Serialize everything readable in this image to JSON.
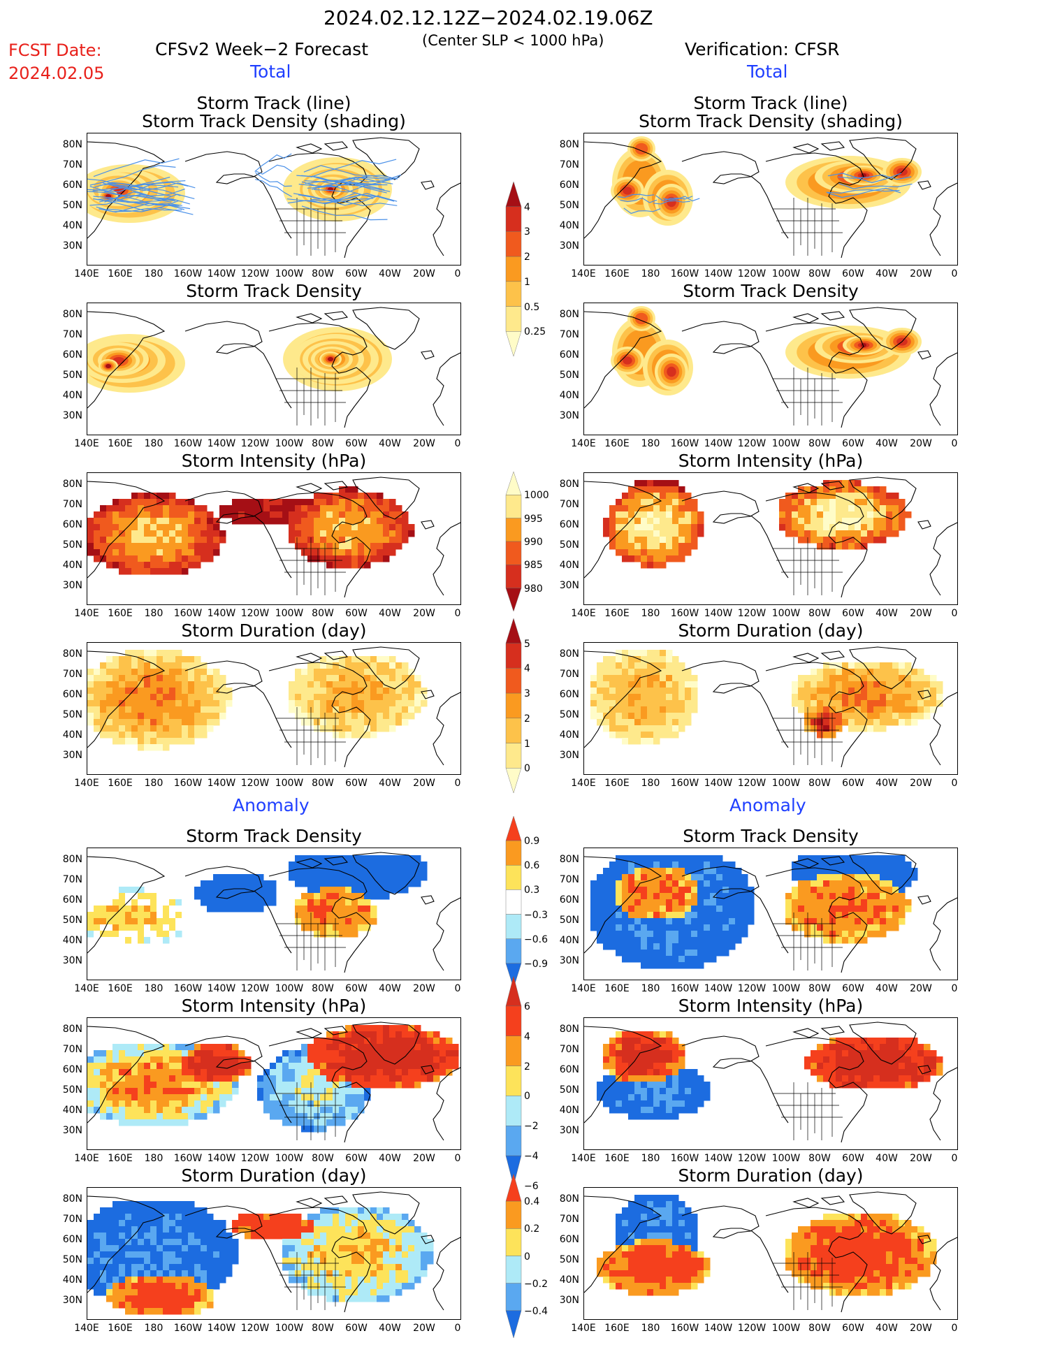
{
  "header": {
    "period": "2024.02.12.12Z−2024.02.19.06Z",
    "criterion": "(Center SLP < 1000 hPa)",
    "fcst_label": "FCST Date:",
    "fcst_date": "2024.02.05",
    "left_title": "CFSv2 Week−2 Forecast",
    "right_title": "Verification: CFSR"
  },
  "sections": {
    "total": "Total",
    "anomaly": "Anomaly"
  },
  "panel_titles": {
    "track_line": "Storm Track (line)",
    "track_shading": "Storm Track Density (shading)",
    "density": "Storm Track Density",
    "intensity": "Storm Intensity (hPa)",
    "duration": "Storm Duration (day)"
  },
  "axes": {
    "lat_labels": [
      "80N",
      "70N",
      "60N",
      "50N",
      "40N",
      "30N"
    ],
    "lon_labels": [
      "140E",
      "160E",
      "180",
      "160W",
      "140W",
      "120W",
      "100W",
      "80W",
      "60W",
      "40W",
      "20W",
      "0"
    ]
  },
  "colorbars": {
    "density_total": {
      "labels": [
        "4",
        "3",
        "2",
        "1",
        "0.5",
        "0.25"
      ],
      "colors": [
        "#a50f15",
        "#d62f1e",
        "#f05a1e",
        "#fa9a20",
        "#fdc24a",
        "#fee98c",
        "#fffcc8"
      ]
    },
    "intensity_total": {
      "labels": [
        "1000",
        "995",
        "990",
        "985",
        "980"
      ],
      "colors": [
        "#fffcc8",
        "#fee98c",
        "#fa9a20",
        "#f05a1e",
        "#d62f1e",
        "#a50f15"
      ]
    },
    "duration_total": {
      "labels": [
        "5",
        "4",
        "3",
        "2",
        "1",
        "0"
      ],
      "colors": [
        "#a50f15",
        "#d62f1e",
        "#f05a1e",
        "#fa9a20",
        "#fdc24a",
        "#fee98c",
        "#fffcc8"
      ]
    },
    "density_anom": {
      "labels": [
        "0.9",
        "0.6",
        "0.3",
        "−0.3",
        "−0.6",
        "−0.9"
      ],
      "colors": [
        "#f5401d",
        "#fa9a20",
        "#fde35a",
        "#ffffff",
        "#aeeaf7",
        "#5aa8f0",
        "#1c6ce0"
      ]
    },
    "intensity_anom": {
      "labels": [
        "6",
        "4",
        "2",
        "0",
        "−2",
        "−4",
        "−6"
      ],
      "colors": [
        "#d62f1e",
        "#f5401d",
        "#fa9a20",
        "#fde35a",
        "#aeeaf7",
        "#5aa8f0",
        "#1c6ce0"
      ]
    },
    "duration_anom": {
      "labels": [
        "0.4",
        "0.2",
        "0",
        "−0.2",
        "−0.4"
      ],
      "colors": [
        "#f5401d",
        "#fa9a20",
        "#fde35a",
        "#aeeaf7",
        "#5aa8f0",
        "#1c6ce0"
      ]
    }
  },
  "colors": {
    "track_line": "#4a90e8",
    "coastline": "#000000",
    "fcst": "#e8201a",
    "section": "#1f3fff"
  }
}
